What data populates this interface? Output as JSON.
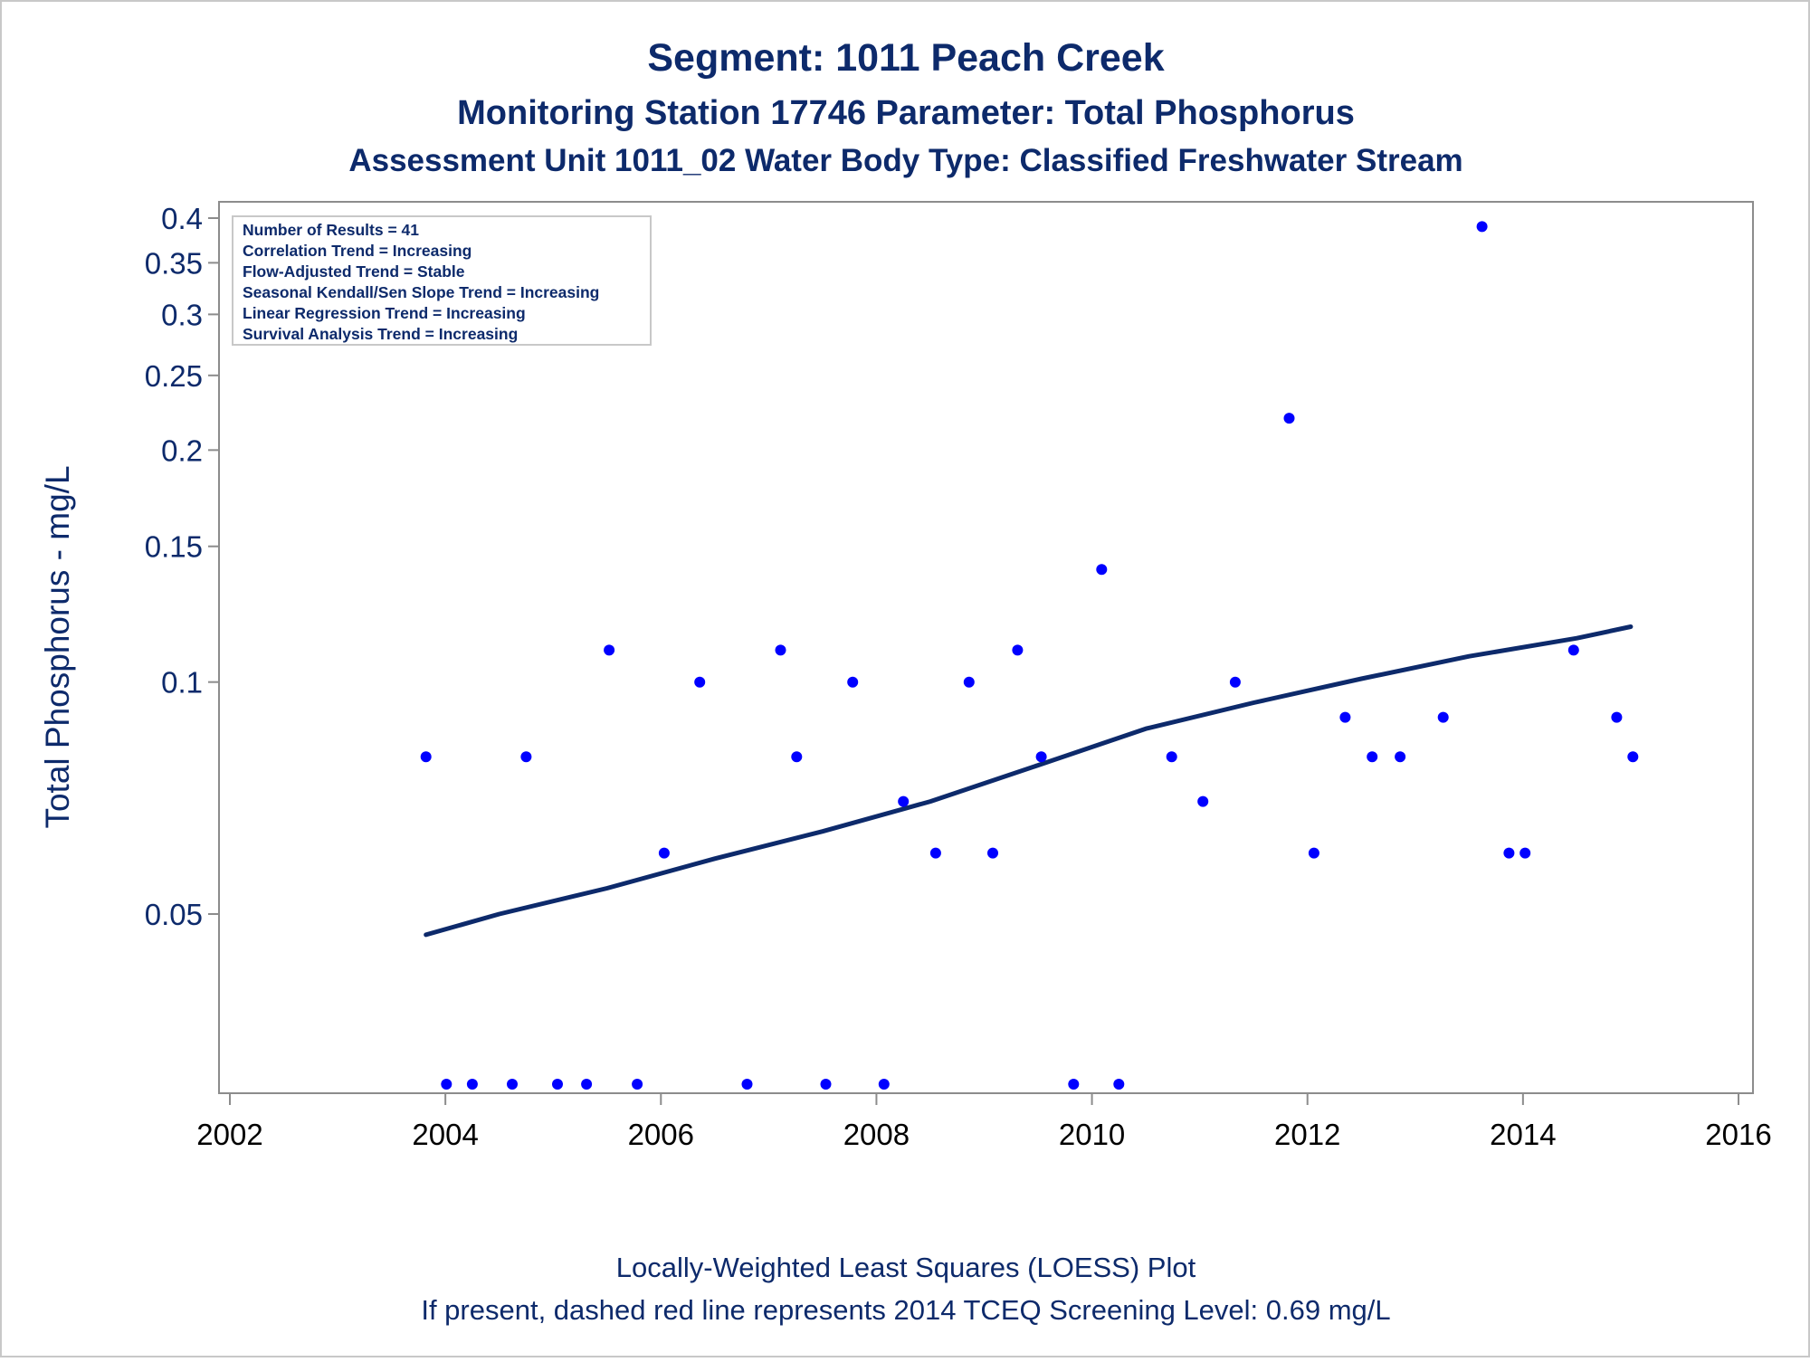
{
  "chart_data": {
    "type": "scatter",
    "title": "Segment: 1011  Peach Creek",
    "subtitle_1": "Monitoring Station 17746 Parameter: Total Phosphorus",
    "subtitle_2": "Assessment Unit 1011_02   Water Body Type: Classified Freshwater Stream",
    "ylabel": "Total Phosphorus - mg/L",
    "xlabel": "",
    "y_scale": "log",
    "xlim": [
      2002,
      2016
    ],
    "x_ticks": [
      2002,
      2004,
      2006,
      2008,
      2010,
      2012,
      2014,
      2016
    ],
    "y_ticks": [
      0.05,
      0.1,
      0.15,
      0.2,
      0.25,
      0.3,
      0.35,
      0.4
    ],
    "y_tick_labels": [
      "0.05",
      "0.1",
      "0.15",
      "0.2",
      "0.25",
      "0.3",
      "0.35",
      "0.4"
    ],
    "grid": false,
    "info_box": {
      "placement": "top-left",
      "lines": [
        "Number of Results = 41",
        "Correlation Trend = Increasing",
        "Flow-Adjusted Trend = Stable",
        "Seasonal Kendall/Sen Slope Trend = Increasing",
        "Linear Regression Trend = Increasing",
        "Survival Analysis Trend = Increasing"
      ]
    },
    "series": [
      {
        "kind": "points",
        "color": "#0000ff",
        "points": [
          {
            "x": 2003.82,
            "y": 0.08
          },
          {
            "x": 2004.01,
            "y": 0.03
          },
          {
            "x": 2004.25,
            "y": 0.03
          },
          {
            "x": 2004.62,
            "y": 0.03
          },
          {
            "x": 2004.75,
            "y": 0.08
          },
          {
            "x": 2005.04,
            "y": 0.03
          },
          {
            "x": 2005.31,
            "y": 0.03
          },
          {
            "x": 2005.52,
            "y": 0.11
          },
          {
            "x": 2005.78,
            "y": 0.03
          },
          {
            "x": 2006.03,
            "y": 0.06
          },
          {
            "x": 2006.36,
            "y": 0.1
          },
          {
            "x": 2006.8,
            "y": 0.03
          },
          {
            "x": 2007.11,
            "y": 0.11
          },
          {
            "x": 2007.26,
            "y": 0.08
          },
          {
            "x": 2007.53,
            "y": 0.03
          },
          {
            "x": 2007.78,
            "y": 0.1
          },
          {
            "x": 2008.07,
            "y": 0.03
          },
          {
            "x": 2008.25,
            "y": 0.07
          },
          {
            "x": 2008.55,
            "y": 0.06
          },
          {
            "x": 2008.86,
            "y": 0.1
          },
          {
            "x": 2009.08,
            "y": 0.06
          },
          {
            "x": 2009.31,
            "y": 0.11
          },
          {
            "x": 2009.53,
            "y": 0.08
          },
          {
            "x": 2009.83,
            "y": 0.03
          },
          {
            "x": 2010.09,
            "y": 0.14
          },
          {
            "x": 2010.25,
            "y": 0.03
          },
          {
            "x": 2010.74,
            "y": 0.08
          },
          {
            "x": 2011.03,
            "y": 0.07
          },
          {
            "x": 2011.33,
            "y": 0.1
          },
          {
            "x": 2011.83,
            "y": 0.22
          },
          {
            "x": 2012.06,
            "y": 0.06
          },
          {
            "x": 2012.35,
            "y": 0.09
          },
          {
            "x": 2012.6,
            "y": 0.08
          },
          {
            "x": 2012.86,
            "y": 0.08
          },
          {
            "x": 2013.26,
            "y": 0.09
          },
          {
            "x": 2013.62,
            "y": 0.39
          },
          {
            "x": 2013.87,
            "y": 0.06
          },
          {
            "x": 2014.02,
            "y": 0.06
          },
          {
            "x": 2014.47,
            "y": 0.11
          },
          {
            "x": 2014.87,
            "y": 0.09
          },
          {
            "x": 2015.02,
            "y": 0.08
          }
        ]
      },
      {
        "kind": "loess",
        "color": "#0d2a6b",
        "x": [
          2003.82,
          2004.5,
          2005.5,
          2006.5,
          2007.5,
          2008.5,
          2009.5,
          2010.5,
          2011.5,
          2012.5,
          2013.5,
          2014.5,
          2015.0
        ],
        "y": [
          0.047,
          0.05,
          0.054,
          0.059,
          0.064,
          0.07,
          0.078,
          0.087,
          0.094,
          0.101,
          0.108,
          0.114,
          0.118
        ]
      }
    ],
    "footnotes": [
      "Locally-Weighted Least Squares (LOESS) Plot",
      "If present, dashed red line represents 2014 TCEQ Screening Level: 0.69 mg/L"
    ]
  }
}
